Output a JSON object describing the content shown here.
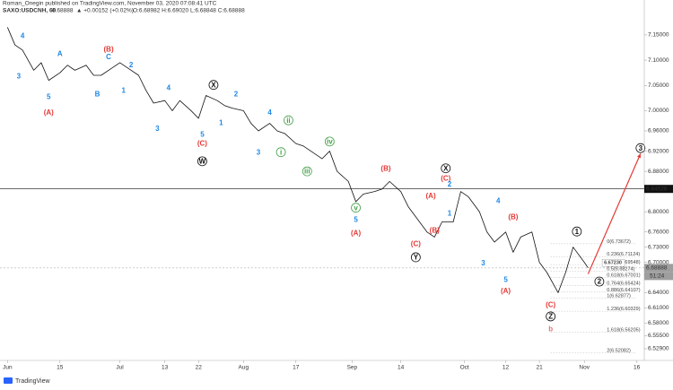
{
  "header": {
    "publisher": "Roman_Onegin published on TradingView.com, November 03, 2020 07:08:41 UTC",
    "symbol": "SAXO:USDCNH, 60",
    "last": "6.68888",
    "change": "▲ +0.00152 (+0.02%)",
    "ohlc": "O:6.68982 H:6.69020 L:6.68848 C:6.68888"
  },
  "footer": {
    "brand": "TradingView"
  },
  "chart_data": {
    "type": "line",
    "x": [
      "2020-06-01",
      "2020-06-03",
      "2020-06-05",
      "2020-06-08",
      "2020-06-10",
      "2020-06-12",
      "2020-06-15",
      "2020-06-17",
      "2020-06-19",
      "2020-06-22",
      "2020-06-24",
      "2020-06-26",
      "2020-06-29",
      "2020-07-01",
      "2020-07-03",
      "2020-07-06",
      "2020-07-08",
      "2020-07-10",
      "2020-07-13",
      "2020-07-15",
      "2020-07-17",
      "2020-07-20",
      "2020-07-22",
      "2020-07-24",
      "2020-07-27",
      "2020-07-29",
      "2020-07-31",
      "2020-08-03",
      "2020-08-05",
      "2020-08-07",
      "2020-08-10",
      "2020-08-12",
      "2020-08-14",
      "2020-08-17",
      "2020-08-19",
      "2020-08-21",
      "2020-08-24",
      "2020-08-26",
      "2020-08-28",
      "2020-08-31",
      "2020-09-02",
      "2020-09-04",
      "2020-09-07",
      "2020-09-09",
      "2020-09-11",
      "2020-09-14",
      "2020-09-16",
      "2020-09-18",
      "2020-09-21",
      "2020-09-23",
      "2020-09-25",
      "2020-09-28",
      "2020-09-30",
      "2020-10-02",
      "2020-10-05",
      "2020-10-07",
      "2020-10-09",
      "2020-10-12",
      "2020-10-14",
      "2020-10-16",
      "2020-10-19",
      "2020-10-21",
      "2020-10-23",
      "2020-10-26",
      "2020-10-28",
      "2020-10-30",
      "2020-11-02",
      "2020-11-03"
    ],
    "series": [
      {
        "name": "SAXO:USDCNH",
        "color": "#111111",
        "values": [
          7.165,
          7.13,
          7.12,
          7.08,
          7.095,
          7.06,
          7.075,
          7.09,
          7.08,
          7.09,
          7.07,
          7.07,
          7.085,
          7.095,
          7.085,
          7.07,
          7.04,
          7.015,
          7.02,
          7.0,
          7.02,
          7.0,
          6.985,
          7.03,
          7.02,
          7.01,
          7.005,
          7.0,
          6.975,
          6.96,
          6.975,
          6.96,
          6.955,
          6.935,
          6.93,
          6.92,
          6.905,
          6.92,
          6.88,
          6.86,
          6.82,
          6.835,
          6.84,
          6.845,
          6.86,
          6.84,
          6.81,
          6.79,
          6.76,
          6.75,
          6.78,
          6.78,
          6.84,
          6.83,
          6.8,
          6.76,
          6.74,
          6.76,
          6.72,
          6.75,
          6.76,
          6.7,
          6.68,
          6.64,
          6.68,
          6.73,
          6.7,
          6.689
        ]
      }
    ],
    "projection": {
      "color": "#e53935",
      "x": [
        "2020-11-03",
        "2020-11-17"
      ],
      "values": [
        6.677,
        6.915
      ]
    },
    "xlim": [
      "2020-05-30",
      "2020-11-18"
    ],
    "xticks": [
      {
        "value": "2020-06-01",
        "label": "Jun"
      },
      {
        "value": "2020-06-15",
        "label": "15"
      },
      {
        "value": "2020-07-01",
        "label": "Jul"
      },
      {
        "value": "2020-07-13",
        "label": "13"
      },
      {
        "value": "2020-07-22",
        "label": "22"
      },
      {
        "value": "2020-08-03",
        "label": "Aug"
      },
      {
        "value": "2020-08-17",
        "label": "17"
      },
      {
        "value": "2020-09-01",
        "label": "Sep"
      },
      {
        "value": "2020-09-14",
        "label": "14"
      },
      {
        "value": "2020-10-01",
        "label": "Oct"
      },
      {
        "value": "2020-10-12",
        "label": "12"
      },
      {
        "value": "2020-10-21",
        "label": "21"
      },
      {
        "value": "2020-11-02",
        "label": "Nov"
      },
      {
        "value": "2020-11-16",
        "label": "16"
      }
    ],
    "ylim": [
      6.474,
      7.219
    ],
    "yticks": [
      {
        "value": 7.15,
        "label": "7.15000"
      },
      {
        "value": 7.1,
        "label": "7.10000"
      },
      {
        "value": 7.05,
        "label": "7.05000"
      },
      {
        "value": 7.0,
        "label": "7.00000"
      },
      {
        "value": 6.96,
        "label": "6.96000"
      },
      {
        "value": 6.92,
        "label": "6.92000"
      },
      {
        "value": 6.88,
        "label": "6.88000"
      },
      {
        "value": 6.8,
        "label": "6.80000"
      },
      {
        "value": 6.76,
        "label": "6.76000"
      },
      {
        "value": 6.73,
        "label": "6.73000"
      },
      {
        "value": 6.7,
        "label": "6.70000"
      },
      {
        "value": 6.64,
        "label": "6.64000"
      },
      {
        "value": 6.61,
        "label": "6.61000"
      },
      {
        "value": 6.58,
        "label": "6.58000"
      },
      {
        "value": 6.555,
        "label": "6.55500"
      },
      {
        "value": 6.529,
        "label": "6.52900"
      }
    ],
    "price_lines": [
      {
        "value": 6.84526,
        "label": "6.84526",
        "color": "#111111"
      },
      {
        "value": 6.68888,
        "label": "6.68888",
        "color": "#9e9e9e"
      }
    ],
    "countdown": "51:24",
    "fib_levels": [
      {
        "value": 6.73672,
        "label": "0(6.73672)"
      },
      {
        "value": 6.71124,
        "label": "0.236(6.71124)"
      },
      {
        "value": 6.69548,
        "label": "0.382(6.69548)"
      },
      {
        "value": 6.68274,
        "label": "0.5(6.68274)"
      },
      {
        "value": 6.67001,
        "label": "0.618(6.67001)"
      },
      {
        "value": 6.65424,
        "label": "0.764(6.65424)"
      },
      {
        "value": 6.64107,
        "label": "0.886(6.64107)"
      },
      {
        "value": 6.62877,
        "label": "1(6.62877)"
      },
      {
        "value": 6.60329,
        "label": "1.236(6.60329)"
      },
      {
        "value": 6.56205,
        "label": "1.618(6.56205)"
      },
      {
        "value": 6.52082,
        "label": "2(6.52082)"
      }
    ],
    "fib_x": [
      "2020-10-24",
      "2020-11-16"
    ],
    "fib_label_x": "2020-11-08",
    "trend_label": {
      "label": "6.67230",
      "x": "2020-11-07",
      "y": 6.699
    },
    "annotations": [
      {
        "label": "4",
        "x": "2020-06-05",
        "y": 7.148,
        "color": "#1e88e5"
      },
      {
        "label": "3",
        "x": "2020-06-04",
        "y": 7.068,
        "color": "#1e88e5"
      },
      {
        "label": "A",
        "x": "2020-06-15",
        "y": 7.113,
        "color": "#1e88e5"
      },
      {
        "label": "5",
        "x": "2020-06-12",
        "y": 7.028,
        "color": "#1e88e5"
      },
      {
        "label": "(A)",
        "x": "2020-06-12",
        "y": 6.997,
        "color": "#e53935"
      },
      {
        "label": "(B)",
        "x": "2020-06-28",
        "y": 7.122,
        "color": "#e53935"
      },
      {
        "label": "C",
        "x": "2020-06-28",
        "y": 7.107,
        "color": "#1e88e5"
      },
      {
        "label": "B",
        "x": "2020-06-25",
        "y": 7.033,
        "color": "#1e88e5"
      },
      {
        "label": "2",
        "x": "2020-07-04",
        "y": 7.091,
        "color": "#1e88e5"
      },
      {
        "label": "1",
        "x": "2020-07-02",
        "y": 7.04,
        "color": "#1e88e5"
      },
      {
        "label": "4",
        "x": "2020-07-14",
        "y": 7.045,
        "color": "#1e88e5"
      },
      {
        "label": "3",
        "x": "2020-07-11",
        "y": 6.965,
        "color": "#1e88e5"
      },
      {
        "label": "X",
        "x": "2020-07-26",
        "y": 7.051,
        "color": "#111111",
        "circle": true
      },
      {
        "label": "2",
        "x": "2020-08-01",
        "y": 7.033,
        "color": "#1e88e5"
      },
      {
        "label": "1",
        "x": "2020-07-28",
        "y": 6.976,
        "color": "#1e88e5"
      },
      {
        "label": "5",
        "x": "2020-07-23",
        "y": 6.953,
        "color": "#1e88e5"
      },
      {
        "label": "(C)",
        "x": "2020-07-23",
        "y": 6.935,
        "color": "#e53935"
      },
      {
        "label": "W",
        "x": "2020-07-23",
        "y": 6.9,
        "color": "#111111",
        "circle": true
      },
      {
        "label": "4",
        "x": "2020-08-10",
        "y": 6.997,
        "color": "#1e88e5"
      },
      {
        "label": "ii",
        "x": "2020-08-15",
        "y": 6.981,
        "color": "#43a047",
        "circle": true
      },
      {
        "label": "3",
        "x": "2020-08-07",
        "y": 6.918,
        "color": "#1e88e5"
      },
      {
        "label": "i",
        "x": "2020-08-13",
        "y": 6.918,
        "color": "#43a047",
        "circle": true
      },
      {
        "label": "iii",
        "x": "2020-08-20",
        "y": 6.88,
        "color": "#43a047",
        "circle": true
      },
      {
        "label": "iv",
        "x": "2020-08-26",
        "y": 6.939,
        "color": "#43a047",
        "circle": true
      },
      {
        "label": "v",
        "x": "2020-09-02",
        "y": 6.808,
        "color": "#43a047",
        "circle": true
      },
      {
        "label": "5",
        "x": "2020-09-02",
        "y": 6.785,
        "color": "#1e88e5"
      },
      {
        "label": "(A)",
        "x": "2020-09-02",
        "y": 6.758,
        "color": "#e53935"
      },
      {
        "label": "(B)",
        "x": "2020-09-10",
        "y": 6.886,
        "color": "#e53935"
      },
      {
        "label": "(A)",
        "x": "2020-09-22",
        "y": 6.832,
        "color": "#e53935"
      },
      {
        "label": "X",
        "x": "2020-09-26",
        "y": 6.886,
        "color": "#111111",
        "circle": true
      },
      {
        "label": "(C)",
        "x": "2020-09-26",
        "y": 6.866,
        "color": "#e53935"
      },
      {
        "label": "2",
        "x": "2020-09-27",
        "y": 6.855,
        "color": "#1e88e5"
      },
      {
        "label": "1",
        "x": "2020-09-27",
        "y": 6.797,
        "color": "#1e88e5"
      },
      {
        "label": "(C)",
        "x": "2020-09-18",
        "y": 6.737,
        "color": "#e53935"
      },
      {
        "label": "(B)",
        "x": "2020-09-23",
        "y": 6.763,
        "color": "#e53935"
      },
      {
        "label": "Y",
        "x": "2020-09-18",
        "y": 6.71,
        "color": "#111111",
        "circle": true
      },
      {
        "label": "4",
        "x": "2020-10-10",
        "y": 6.822,
        "color": "#1e88e5"
      },
      {
        "label": "3",
        "x": "2020-10-06",
        "y": 6.699,
        "color": "#1e88e5"
      },
      {
        "label": "(B)",
        "x": "2020-10-14",
        "y": 6.79,
        "color": "#e53935"
      },
      {
        "label": "5",
        "x": "2020-10-12",
        "y": 6.666,
        "color": "#1e88e5"
      },
      {
        "label": "(A)",
        "x": "2020-10-12",
        "y": 6.644,
        "color": "#e53935"
      },
      {
        "label": "(C)",
        "x": "2020-10-24",
        "y": 6.616,
        "color": "#e53935"
      },
      {
        "label": "Z",
        "x": "2020-10-24",
        "y": 6.593,
        "color": "#111111",
        "circle": true
      },
      {
        "label": "b",
        "x": "2020-10-24",
        "y": 6.568,
        "color": "#e57373"
      },
      {
        "label": "1",
        "x": "2020-10-31",
        "y": 6.761,
        "color": "#111111",
        "circle": true
      },
      {
        "label": "2",
        "x": "2020-11-06",
        "y": 6.662,
        "color": "#111111",
        "circle": true
      },
      {
        "label": "3",
        "x": "2020-11-17",
        "y": 6.926,
        "color": "#111111",
        "circle": true
      }
    ]
  }
}
